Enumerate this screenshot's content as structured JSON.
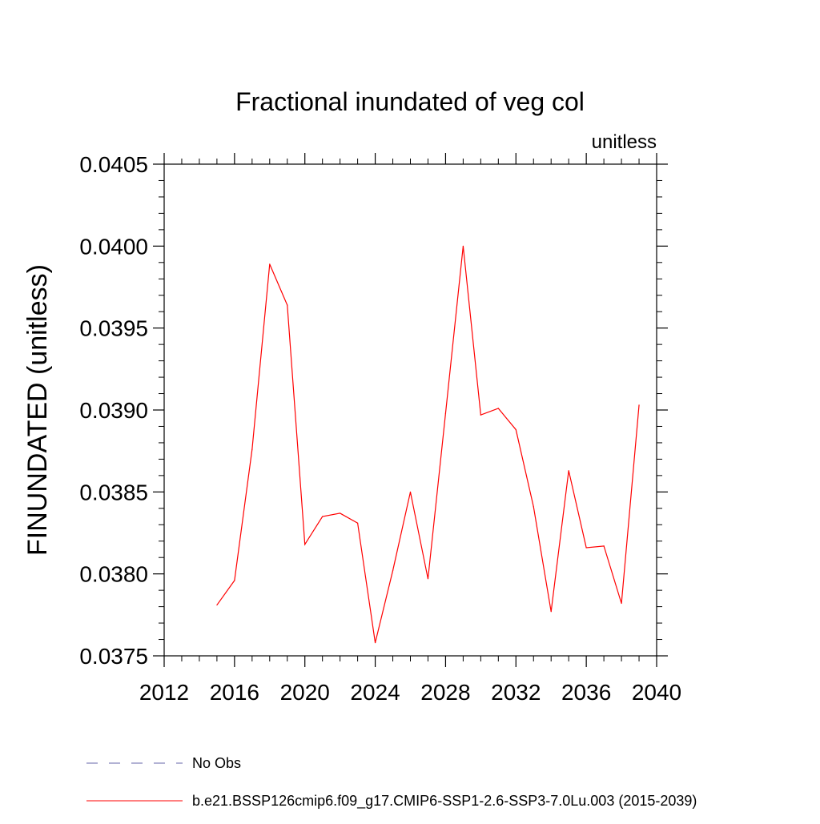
{
  "chart_data": {
    "type": "line",
    "title": "Fractional inundated of veg col",
    "units_label": "unitless",
    "ylabel": "FINUNDATED  (unitless)",
    "xlabel": "",
    "xlim": [
      2012,
      2040
    ],
    "ylim": [
      0.0375,
      0.0405
    ],
    "x_ticks": [
      2012,
      2016,
      2020,
      2024,
      2028,
      2032,
      2036,
      2040
    ],
    "x_tick_labels": [
      "2012",
      "2016",
      "2020",
      "2024",
      "2028",
      "2032",
      "2036",
      "2040"
    ],
    "y_ticks": [
      0.0375,
      0.038,
      0.0385,
      0.039,
      0.0395,
      0.04,
      0.0405
    ],
    "y_tick_labels": [
      "0.0375",
      "0.0380",
      "0.0385",
      "0.0390",
      "0.0395",
      "0.0400",
      "0.0405"
    ],
    "grid": false,
    "legend_position": "bottom",
    "series": [
      {
        "name": "b.e21.BSSP126cmip6.f09_g17.CMIP6-SSP1-2.6-SSP3-7.0Lu.003 (2015-2039)",
        "color": "#ff0000",
        "style": "solid",
        "x": [
          2015,
          2016,
          2017,
          2018,
          2019,
          2020,
          2021,
          2022,
          2023,
          2024,
          2025,
          2026,
          2027,
          2028,
          2029,
          2030,
          2031,
          2032,
          2033,
          2034,
          2035,
          2036,
          2037,
          2038,
          2039
        ],
        "values": [
          0.03781,
          0.03796,
          0.03876,
          0.03989,
          0.03964,
          0.03818,
          0.03835,
          0.03837,
          0.03831,
          0.03758,
          0.03802,
          0.0385,
          0.03797,
          0.03898,
          0.04,
          0.03897,
          0.03901,
          0.03888,
          0.03841,
          0.03777,
          0.03863,
          0.03816,
          0.03817,
          0.03782,
          0.03903
        ]
      },
      {
        "name": "No Obs",
        "color": "#6666aa",
        "style": "dashed",
        "x": [],
        "values": []
      }
    ]
  }
}
